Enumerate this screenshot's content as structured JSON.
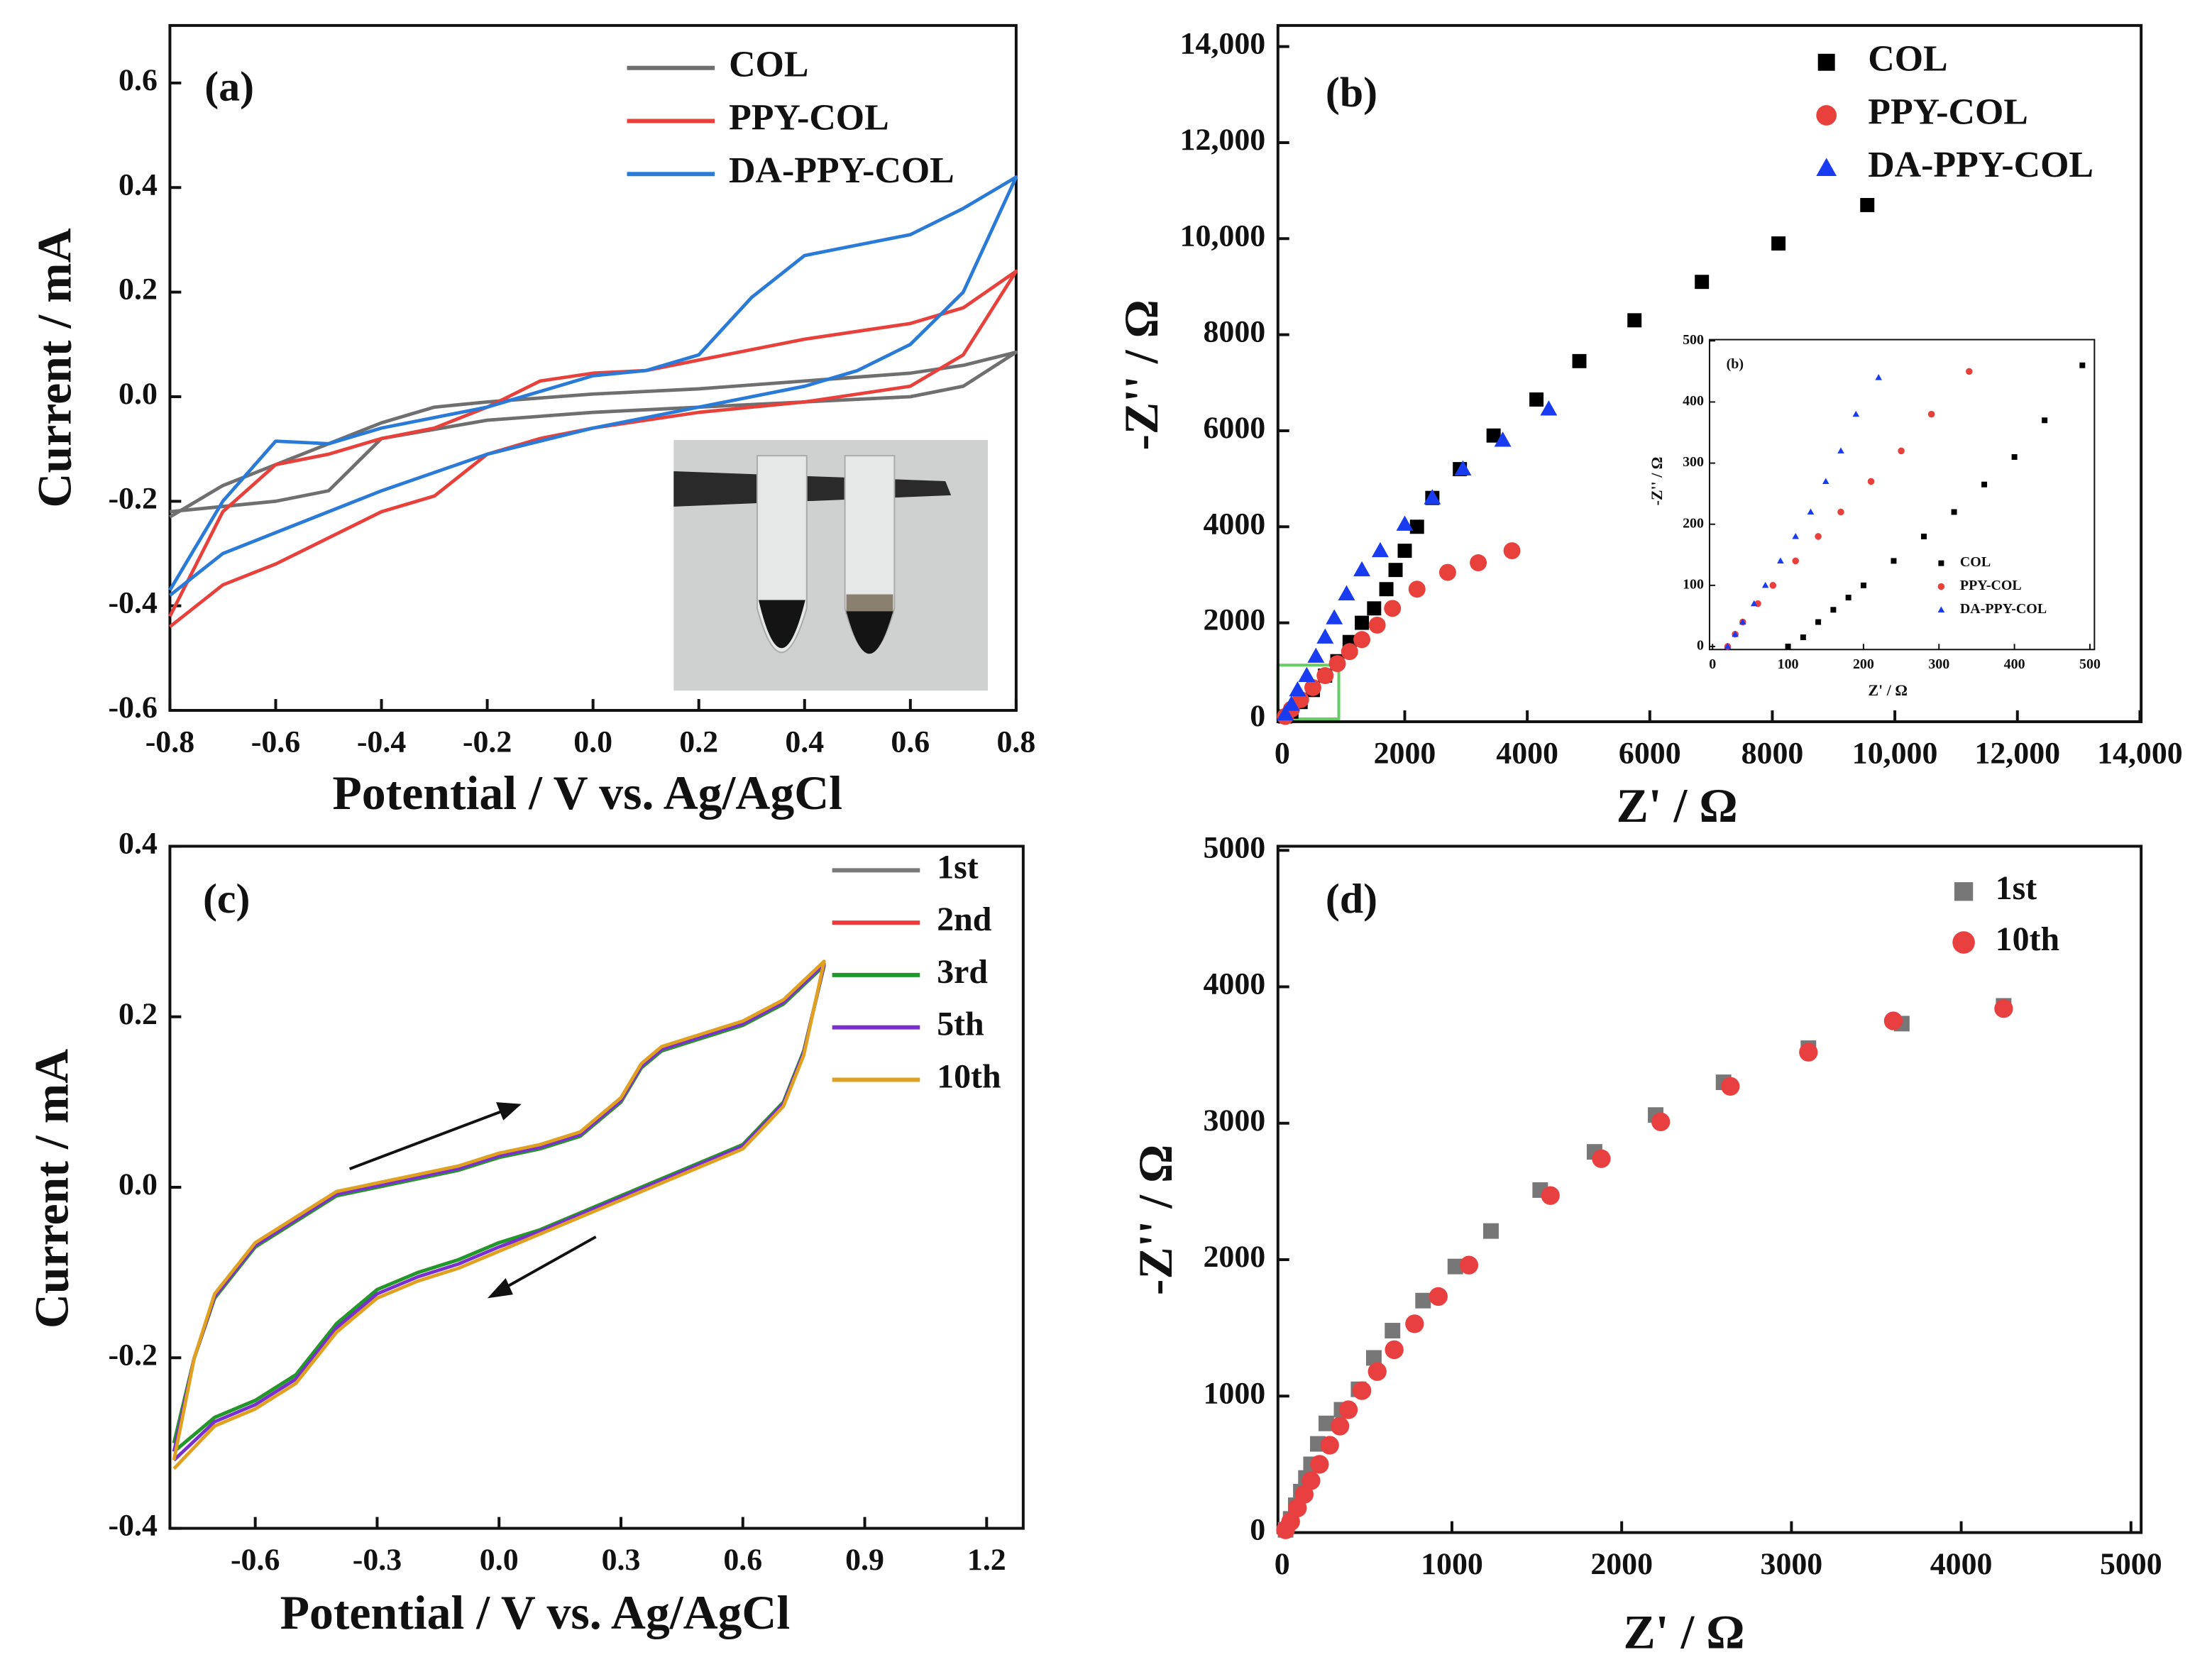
{
  "chart_data": [
    {
      "type": "line",
      "panel_label": "(a)",
      "x_label": "Potential / V vs. Ag/AgCl",
      "y_label": "Current / mA",
      "xlim": [
        -0.8,
        0.8
      ],
      "ylim": [
        -0.6,
        0.71
      ],
      "xticks": [
        -0.8,
        -0.6,
        -0.4,
        -0.2,
        {
          "value": 0,
          "label": "0.0"
        },
        0.2,
        0.4,
        0.6,
        0.8
      ],
      "yticks": [
        -0.6,
        -0.4,
        -0.2,
        {
          "value": 0,
          "label": "0.0"
        },
        0.2,
        0.4,
        0.6
      ],
      "legend": "upper right",
      "series": [
        {
          "name": "COL",
          "color": "#6f6f6f",
          "x": [
            -0.8,
            -0.7,
            -0.6,
            -0.5,
            -0.4,
            -0.3,
            -0.2,
            0,
            0.2,
            0.4,
            0.6,
            0.7,
            0.8,
            0.7,
            0.6,
            0.4,
            0.2,
            0,
            -0.2,
            -0.4,
            -0.5,
            -0.6,
            -0.7,
            -0.8
          ],
          "values": [
            -0.23,
            -0.17,
            -0.13,
            -0.09,
            -0.05,
            -0.02,
            -0.01,
            0.005,
            0.015,
            0.03,
            0.045,
            0.06,
            0.085,
            0.02,
            0.0,
            -0.01,
            -0.02,
            -0.03,
            -0.045,
            -0.08,
            -0.18,
            -0.2,
            -0.21,
            -0.22
          ]
        },
        {
          "name": "PPY-COL",
          "color": "#e8413c",
          "x": [
            -0.8,
            -0.7,
            -0.6,
            -0.5,
            -0.4,
            -0.3,
            -0.2,
            -0.1,
            0,
            0.2,
            0.4,
            0.6,
            0.7,
            0.8,
            0.7,
            0.6,
            0.4,
            0.2,
            0.1,
            0,
            -0.1,
            -0.2,
            -0.3,
            -0.4,
            -0.5,
            -0.6,
            -0.7,
            -0.8
          ],
          "values": [
            -0.44,
            -0.36,
            -0.32,
            -0.27,
            -0.22,
            -0.19,
            -0.11,
            -0.08,
            -0.06,
            -0.03,
            -0.01,
            0.02,
            0.08,
            0.24,
            0.17,
            0.14,
            0.11,
            0.07,
            0.05,
            0.045,
            0.03,
            -0.02,
            -0.06,
            -0.08,
            -0.11,
            -0.13,
            -0.22,
            -0.42
          ]
        },
        {
          "name": "DA-PPY-COL",
          "color": "#2a7ad8",
          "x": [
            -0.8,
            -0.7,
            -0.6,
            -0.4,
            -0.2,
            0,
            0.2,
            0.4,
            0.5,
            0.6,
            0.7,
            0.8,
            0.7,
            0.6,
            0.5,
            0.4,
            0.3,
            0.2,
            0.1,
            0,
            -0.2,
            -0.4,
            -0.5,
            -0.6,
            -0.7,
            -0.8
          ],
          "values": [
            -0.38,
            -0.3,
            -0.26,
            -0.18,
            -0.11,
            -0.06,
            -0.02,
            0.02,
            0.05,
            0.1,
            0.2,
            0.42,
            0.36,
            0.31,
            0.29,
            0.27,
            0.19,
            0.08,
            0.05,
            0.04,
            -0.02,
            -0.06,
            -0.09,
            -0.085,
            -0.2,
            -0.37
          ]
        }
      ]
    },
    {
      "type": "scatter",
      "panel_label": "(b)",
      "x_label": "Z' / Ω",
      "y_label": "-Z'' / Ω",
      "xlim": [
        -70,
        14020
      ],
      "ylim": [
        -60,
        14440
      ],
      "xticks": [
        0,
        2000,
        4000,
        6000,
        8000,
        {
          "value": 10000,
          "label": "10,000"
        },
        {
          "value": 12000,
          "label": "12,000"
        },
        {
          "value": 14000,
          "label": "14,000"
        }
      ],
      "yticks": [
        0,
        2000,
        4000,
        6000,
        8000,
        {
          "value": 10000,
          "label": "10,000"
        },
        {
          "value": 12000,
          "label": "12,000"
        },
        {
          "value": 14000,
          "label": "14,000"
        }
      ],
      "legend": "upper right",
      "series": [
        {
          "name": "COL",
          "color": "#000000",
          "marker": "square",
          "x": [
            50,
            150,
            300,
            500,
            700,
            900,
            1100,
            1300,
            1500,
            1700,
            1850,
            2000,
            2200,
            2450,
            2900,
            3450,
            4150,
            4850,
            5750,
            6850,
            8100,
            9550
          ],
          "values": [
            50,
            150,
            350,
            600,
            900,
            1200,
            1600,
            2000,
            2300,
            2700,
            3100,
            3500,
            4000,
            4600,
            5200,
            5900,
            6650,
            7450,
            8300,
            9100,
            9900,
            10700
          ]
        },
        {
          "name": "PPY-COL",
          "color": "#e8413c",
          "marker": "circle",
          "x": [
            50,
            150,
            300,
            500,
            700,
            900,
            1100,
            1300,
            1550,
            1800,
            2200,
            2700,
            3200,
            3750
          ],
          "values": [
            50,
            200,
            400,
            650,
            900,
            1150,
            1400,
            1650,
            1950,
            2300,
            2700,
            3050,
            3250,
            3500
          ]
        },
        {
          "name": "DA-PPY-COL",
          "color": "#1a3cf0",
          "marker": "triangle",
          "x": [
            50,
            150,
            250,
            400,
            550,
            700,
            850,
            1050,
            1300,
            1600,
            2000,
            2450,
            2950,
            3600,
            4350
          ],
          "values": [
            100,
            300,
            600,
            900,
            1300,
            1700,
            2100,
            2600,
            3100,
            3500,
            4050,
            4600,
            5200,
            5800,
            6450
          ]
        }
      ]
    },
    {
      "type": "line",
      "panel_label": "(c)",
      "x_label": "Potential / V vs. Ag/AgCl",
      "y_label": "Current / mA",
      "xlim": [
        -0.81,
        1.29
      ],
      "ylim": [
        -0.4,
        0.4
      ],
      "xticks": [
        -0.6,
        -0.3,
        {
          "value": 0,
          "label": "0.0"
        },
        0.3,
        0.6,
        0.9,
        1.2
      ],
      "yticks": [
        -0.4,
        -0.2,
        {
          "value": 0,
          "label": "0.0"
        },
        0.2,
        0.4
      ],
      "legend": "upper right",
      "x": [
        -0.8,
        -0.75,
        -0.7,
        -0.6,
        -0.5,
        -0.4,
        -0.3,
        -0.2,
        -0.1,
        0,
        0.1,
        0.2,
        0.3,
        0.35,
        0.4,
        0.5,
        0.6,
        0.7,
        0.8,
        0.75,
        0.7,
        0.6,
        0.5,
        0.4,
        0.3,
        0.2,
        0.1,
        0,
        -0.1,
        -0.2,
        -0.3,
        -0.4,
        -0.5,
        -0.6,
        -0.7,
        -0.8
      ],
      "series": [
        {
          "name": "1st",
          "color": "#7a7a7a",
          "values": [
            -0.3,
            -0.2,
            -0.13,
            -0.07,
            -0.04,
            -0.01,
            0.0,
            0.01,
            0.02,
            0.035,
            0.045,
            0.06,
            0.1,
            0.14,
            0.16,
            0.175,
            0.19,
            0.215,
            0.26,
            0.16,
            0.1,
            0.05,
            0.03,
            0.01,
            -0.01,
            -0.03,
            -0.05,
            -0.065,
            -0.085,
            -0.1,
            -0.12,
            -0.16,
            -0.22,
            -0.25,
            -0.27,
            -0.31
          ]
        },
        {
          "name": "2nd",
          "color": "#f03a3a",
          "values": [
            -0.3,
            -0.2,
            -0.13,
            -0.07,
            -0.04,
            -0.01,
            0.0,
            0.01,
            0.02,
            0.035,
            0.045,
            0.06,
            0.1,
            0.14,
            0.16,
            0.175,
            0.19,
            0.215,
            0.26,
            0.16,
            0.1,
            0.05,
            0.03,
            0.01,
            -0.01,
            -0.03,
            -0.05,
            -0.065,
            -0.085,
            -0.1,
            -0.12,
            -0.16,
            -0.22,
            -0.25,
            -0.27,
            -0.31
          ]
        },
        {
          "name": "3rd",
          "color": "#1f9a2a",
          "values": [
            -0.3,
            -0.2,
            -0.13,
            -0.07,
            -0.04,
            -0.01,
            0.0,
            0.01,
            0.02,
            0.035,
            0.045,
            0.06,
            0.1,
            0.14,
            0.16,
            0.175,
            0.19,
            0.215,
            0.26,
            0.16,
            0.1,
            0.05,
            0.03,
            0.01,
            -0.01,
            -0.03,
            -0.05,
            -0.065,
            -0.085,
            -0.1,
            -0.12,
            -0.16,
            -0.22,
            -0.25,
            -0.27,
            -0.31
          ]
        },
        {
          "name": "5th",
          "color": "#7a2fd0",
          "values": [
            -0.31,
            -0.2,
            -0.128,
            -0.068,
            -0.038,
            -0.008,
            0.002,
            0.012,
            0.022,
            0.037,
            0.047,
            0.062,
            0.102,
            0.142,
            0.162,
            0.177,
            0.192,
            0.217,
            0.262,
            0.158,
            0.098,
            0.048,
            0.028,
            0.008,
            -0.012,
            -0.032,
            -0.052,
            -0.07,
            -0.09,
            -0.105,
            -0.125,
            -0.165,
            -0.225,
            -0.255,
            -0.275,
            -0.32
          ]
        },
        {
          "name": "10th",
          "color": "#e0a020",
          "values": [
            -0.32,
            -0.2,
            -0.125,
            -0.065,
            -0.035,
            -0.005,
            0.005,
            0.015,
            0.025,
            0.04,
            0.05,
            0.065,
            0.105,
            0.145,
            0.165,
            0.18,
            0.195,
            0.22,
            0.265,
            0.155,
            0.095,
            0.045,
            0.025,
            0.005,
            -0.015,
            -0.035,
            -0.055,
            -0.075,
            -0.095,
            -0.11,
            -0.13,
            -0.17,
            -0.23,
            -0.26,
            -0.28,
            -0.33
          ]
        }
      ]
    },
    {
      "type": "scatter",
      "panel_label": "(d)",
      "x_label": "Z' / Ω",
      "y_label": "-Z'' / Ω",
      "xlim": [
        -25,
        5060
      ],
      "ylim": [
        0,
        5030
      ],
      "xticks": [
        0,
        1000,
        2000,
        3000,
        4000,
        5000
      ],
      "yticks": [
        0,
        1000,
        2000,
        3000,
        4000,
        5000
      ],
      "legend": "upper right",
      "series": [
        {
          "name": "1st",
          "color": "#777777",
          "marker": "square",
          "x": [
            20,
            50,
            80,
            110,
            140,
            170,
            210,
            260,
            350,
            450,
            540,
            650,
            830,
            1020,
            1230,
            1520,
            1840,
            2200,
            2600,
            3100,
            3650,
            4250
          ],
          "values": [
            20,
            100,
            200,
            300,
            400,
            500,
            650,
            800,
            900,
            1050,
            1280,
            1480,
            1700,
            1950,
            2210,
            2510,
            2790,
            3060,
            3300,
            3550,
            3730,
            3860
          ]
        },
        {
          "name": "10th",
          "color": "#e84040",
          "marker": "circle",
          "x": [
            20,
            50,
            90,
            130,
            170,
            220,
            280,
            340,
            390,
            470,
            560,
            660,
            780,
            920,
            1100,
            1580,
            1880,
            2230,
            2640,
            3100,
            3600,
            4250
          ],
          "values": [
            20,
            80,
            180,
            280,
            380,
            500,
            640,
            780,
            900,
            1040,
            1180,
            1340,
            1530,
            1730,
            1960,
            2470,
            2740,
            3010,
            3270,
            3520,
            3750,
            3840
          ]
        }
      ]
    },
    {
      "type": "scatter",
      "panel_label": "(b)",
      "x_label": "Z' / Ω",
      "y_label": "-Z'' / Ω",
      "xlim": [
        -4,
        506
      ],
      "ylim": [
        -5,
        502
      ],
      "xticks": [
        0,
        100,
        200,
        300,
        400,
        500
      ],
      "yticks": [
        0,
        100,
        200,
        300,
        400,
        500
      ],
      "legend": "lower right",
      "series": [
        {
          "name": "COL",
          "color": "#000000",
          "marker": "square",
          "x": [
            100,
            120,
            140,
            160,
            180,
            200,
            240,
            280,
            320,
            360,
            400,
            440,
            490
          ],
          "values": [
            0,
            15,
            40,
            60,
            80,
            100,
            140,
            180,
            220,
            265,
            310,
            370,
            460
          ]
        },
        {
          "name": "PPY-COL",
          "color": "#e8413c",
          "marker": "circle",
          "x": [
            20,
            30,
            40,
            60,
            80,
            110,
            140,
            170,
            210,
            250,
            290,
            340
          ],
          "values": [
            0,
            20,
            40,
            70,
            100,
            140,
            180,
            220,
            270,
            320,
            380,
            450
          ]
        },
        {
          "name": "DA-PPY-COL",
          "color": "#1a3cf0",
          "marker": "triangle",
          "x": [
            20,
            30,
            40,
            55,
            70,
            90,
            110,
            130,
            150,
            170,
            190,
            220
          ],
          "values": [
            0,
            20,
            40,
            70,
            100,
            140,
            180,
            220,
            270,
            320,
            380,
            440
          ]
        }
      ]
    }
  ]
}
